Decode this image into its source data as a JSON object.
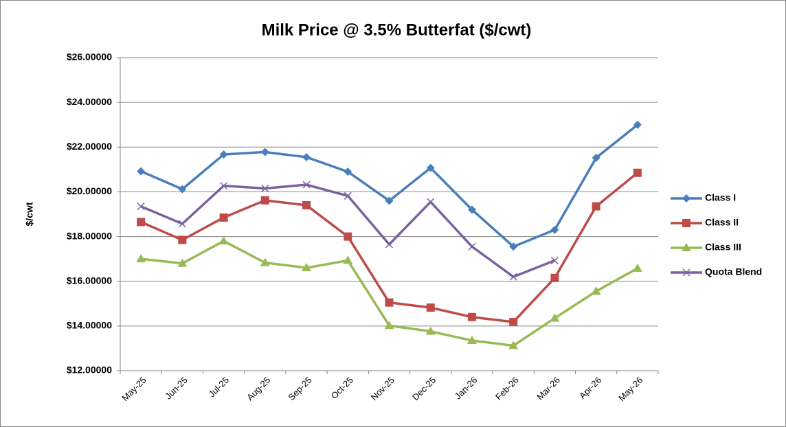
{
  "chart_data": {
    "type": "line",
    "title": "Milk Price @ 3.5% Butterfat ($/cwt)",
    "y_label": "$/cwt",
    "categories": [
      "May-25",
      "Jun-25",
      "Jul-25",
      "Aug-25",
      "Sep-25",
      "Oct-25",
      "Nov-25",
      "Dec-25",
      "Jan-26",
      "Feb-26",
      "Mar-26",
      "Apr-26",
      "May-26"
    ],
    "series": [
      {
        "name": "Class I",
        "color": "#4a7ebb",
        "marker": "diamond",
        "values": [
          20.92,
          20.12,
          21.67,
          21.78,
          21.55,
          20.9,
          19.6,
          21.07,
          19.2,
          17.55,
          18.3,
          21.52,
          23.0
        ]
      },
      {
        "name": "Class II",
        "color": "#be4b48",
        "marker": "square",
        "values": [
          18.65,
          17.85,
          18.85,
          19.62,
          19.4,
          18.0,
          15.05,
          14.82,
          14.4,
          14.18,
          16.15,
          19.35,
          20.85
        ]
      },
      {
        "name": "Class III",
        "color": "#98b954",
        "marker": "triangle",
        "values": [
          17.0,
          16.8,
          17.8,
          16.83,
          16.6,
          16.93,
          14.02,
          13.76,
          13.35,
          13.12,
          14.35,
          15.55,
          16.58
        ]
      },
      {
        "name": "Quota Blend",
        "color": "#7d60a0",
        "marker": "x",
        "values": [
          19.35,
          18.57,
          20.27,
          20.15,
          20.32,
          19.82,
          17.65,
          19.55,
          17.55,
          16.2,
          16.93,
          null,
          null
        ]
      }
    ],
    "ylim": [
      12,
      26
    ],
    "yticks": [
      {
        "value": 12,
        "label": "$12.00000"
      },
      {
        "value": 14,
        "label": "$14.00000"
      },
      {
        "value": 16,
        "label": "$16.00000"
      },
      {
        "value": 18,
        "label": "$18.00000"
      },
      {
        "value": 20,
        "label": "$20.00000"
      },
      {
        "value": 22,
        "label": "$22.00000"
      },
      {
        "value": 24,
        "label": "$24.00000"
      },
      {
        "value": 26,
        "label": "$26.00000"
      }
    ],
    "grid": true,
    "legend": "right"
  }
}
